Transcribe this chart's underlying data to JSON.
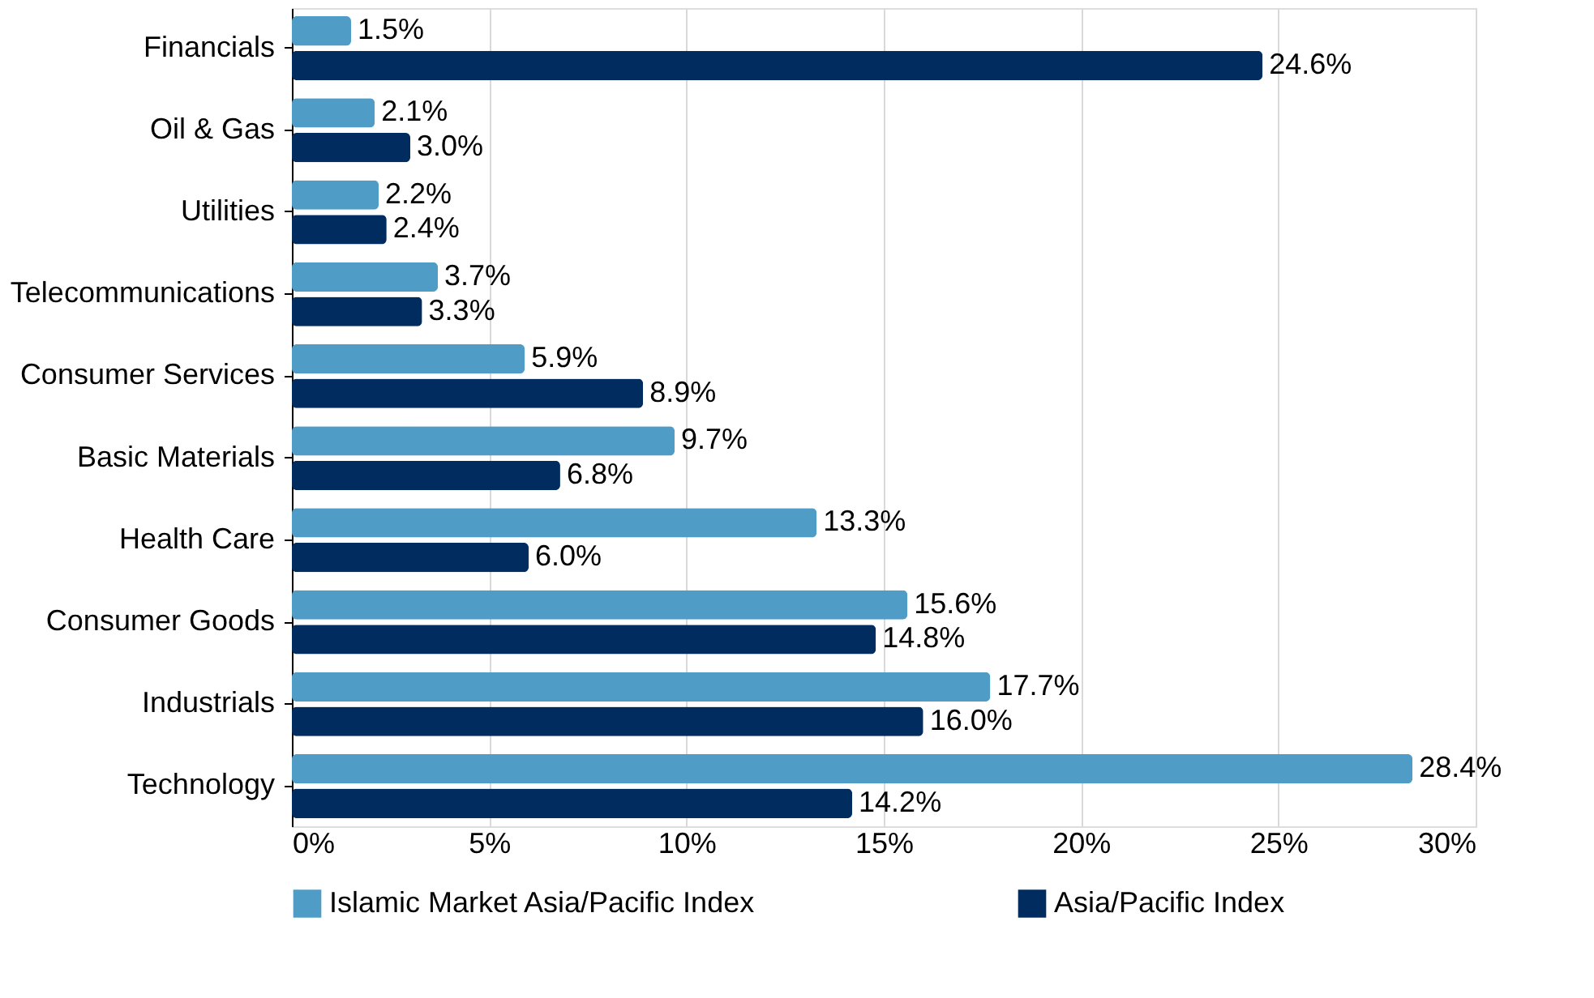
{
  "chart_data": {
    "type": "bar",
    "orientation": "horizontal",
    "categories": [
      "Financials",
      "Oil & Gas",
      "Utilities",
      "Telecommunications",
      "Consumer Services",
      "Basic Materials",
      "Health Care",
      "Consumer Goods",
      "Industrials",
      "Technology"
    ],
    "series": [
      {
        "name": "Islamic Market Asia/Pacific Index",
        "color": "#4f9cc6",
        "values": [
          1.5,
          2.1,
          2.2,
          3.7,
          5.9,
          9.7,
          13.3,
          15.6,
          17.7,
          28.4
        ],
        "value_labels": [
          "1.5%",
          "2.1%",
          "2.2%",
          "3.7%",
          "5.9%",
          "9.7%",
          "13.3%",
          "15.6%",
          "17.7%",
          "28.4%"
        ]
      },
      {
        "name": "Asia/Pacific Index",
        "color": "#002c5f",
        "values": [
          24.6,
          3.0,
          2.4,
          3.3,
          8.9,
          6.8,
          6.0,
          14.8,
          16.0,
          14.2
        ],
        "value_labels": [
          "24.6%",
          "3.0%",
          "2.4%",
          "3.3%",
          "8.9%",
          "6.8%",
          "6.0%",
          "14.8%",
          "16.0%",
          "14.2%"
        ]
      }
    ],
    "xlim": [
      0,
      30
    ],
    "xticks": [
      {
        "value": 0,
        "label": "0%"
      },
      {
        "value": 5,
        "label": "5%"
      },
      {
        "value": 10,
        "label": "10%"
      },
      {
        "value": 15,
        "label": "15%"
      },
      {
        "value": 20,
        "label": "20%"
      },
      {
        "value": 25,
        "label": "25%"
      },
      {
        "value": 30,
        "label": "30%"
      }
    ],
    "grid": "x",
    "legend": "bottom"
  }
}
